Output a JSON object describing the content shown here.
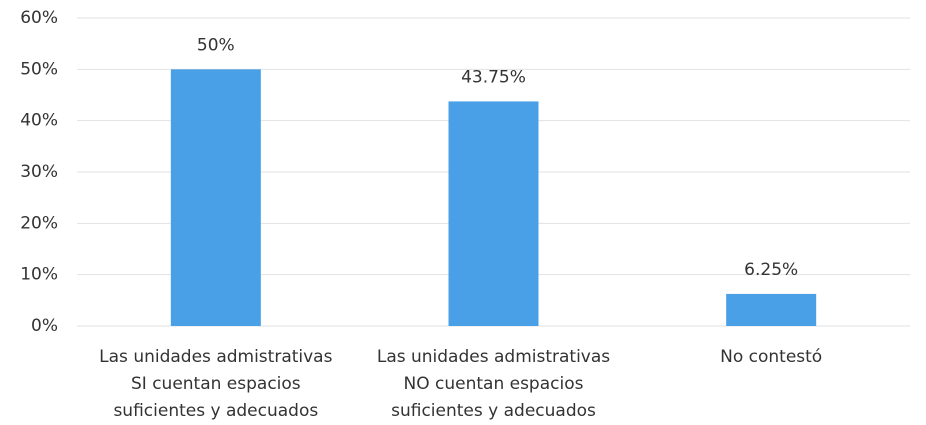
{
  "chart_data": {
    "type": "bar",
    "categories": [
      [
        "Las unidades admistrativas",
        "SI cuentan espacios",
        "suficientes y adecuados"
      ],
      [
        "Las unidades admistrativas",
        "NO cuentan espacios",
        "suficientes y adecuados"
      ],
      [
        "No contestó"
      ]
    ],
    "values": [
      50,
      43.75,
      6.25
    ],
    "value_labels": [
      "50%",
      "43.75%",
      "6.25%"
    ],
    "color": "#4aa0e6",
    "ylim": [
      0,
      60
    ],
    "yticks": [
      {
        "value": 0,
        "label": "0%"
      },
      {
        "value": 10,
        "label": "10%"
      },
      {
        "value": 20,
        "label": "20%"
      },
      {
        "value": 30,
        "label": "30%"
      },
      {
        "value": 40,
        "label": "40%"
      },
      {
        "value": 50,
        "label": "50%"
      },
      {
        "value": 60,
        "label": "60%"
      }
    ],
    "grid": true
  }
}
